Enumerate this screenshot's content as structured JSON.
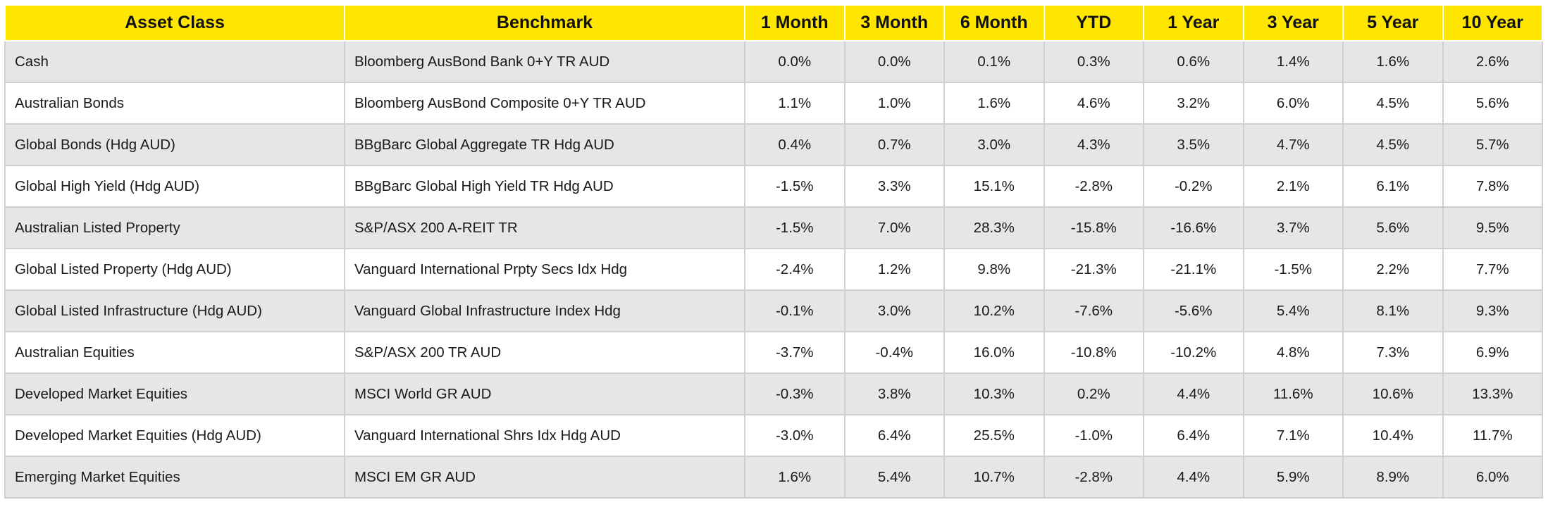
{
  "table": {
    "header": [
      "Asset Class",
      "Benchmark",
      "1 Month",
      "3 Month",
      "6 Month",
      "YTD",
      "1 Year",
      "3 Year",
      "5 Year",
      "10 Year"
    ],
    "rows": [
      [
        "Cash",
        "Bloomberg AusBond Bank 0+Y TR AUD",
        "0.0%",
        "0.0%",
        "0.1%",
        "0.3%",
        "0.6%",
        "1.4%",
        "1.6%",
        "2.6%"
      ],
      [
        "Australian Bonds",
        "Bloomberg AusBond Composite 0+Y TR AUD",
        "1.1%",
        "1.0%",
        "1.6%",
        "4.6%",
        "3.2%",
        "6.0%",
        "4.5%",
        "5.6%"
      ],
      [
        "Global Bonds (Hdg AUD)",
        "BBgBarc Global Aggregate TR Hdg AUD",
        "0.4%",
        "0.7%",
        "3.0%",
        "4.3%",
        "3.5%",
        "4.7%",
        "4.5%",
        "5.7%"
      ],
      [
        "Global High Yield (Hdg AUD)",
        "BBgBarc Global High Yield TR Hdg AUD",
        "-1.5%",
        "3.3%",
        "15.1%",
        "-2.8%",
        "-0.2%",
        "2.1%",
        "6.1%",
        "7.8%"
      ],
      [
        "Australian Listed Property",
        "S&P/ASX 200 A-REIT TR",
        "-1.5%",
        "7.0%",
        "28.3%",
        "-15.8%",
        "-16.6%",
        "3.7%",
        "5.6%",
        "9.5%"
      ],
      [
        "Global Listed Property (Hdg AUD)",
        "Vanguard International Prpty Secs Idx Hdg",
        "-2.4%",
        "1.2%",
        "9.8%",
        "-21.3%",
        "-21.1%",
        "-1.5%",
        "2.2%",
        "7.7%"
      ],
      [
        "Global Listed Infrastructure (Hdg AUD)",
        "Vanguard Global Infrastructure Index Hdg",
        "-0.1%",
        "3.0%",
        "10.2%",
        "-7.6%",
        "-5.6%",
        "5.4%",
        "8.1%",
        "9.3%"
      ],
      [
        "Australian Equities",
        "S&P/ASX 200 TR AUD",
        "-3.7%",
        "-0.4%",
        "16.0%",
        "-10.8%",
        "-10.2%",
        "4.8%",
        "7.3%",
        "6.9%"
      ],
      [
        "Developed Market Equities",
        "MSCI World GR AUD",
        "-0.3%",
        "3.8%",
        "10.3%",
        "0.2%",
        "4.4%",
        "11.6%",
        "10.6%",
        "13.3%"
      ],
      [
        "Developed Market Equities (Hdg AUD)",
        "Vanguard International Shrs Idx Hdg AUD",
        "-3.0%",
        "6.4%",
        "25.5%",
        "-1.0%",
        "6.4%",
        "7.1%",
        "10.4%",
        "11.7%"
      ],
      [
        "Emerging Market Equities",
        "MSCI EM GR AUD",
        "1.6%",
        "5.4%",
        "10.7%",
        "-2.8%",
        "4.4%",
        "5.9%",
        "8.9%",
        "6.0%"
      ]
    ]
  }
}
